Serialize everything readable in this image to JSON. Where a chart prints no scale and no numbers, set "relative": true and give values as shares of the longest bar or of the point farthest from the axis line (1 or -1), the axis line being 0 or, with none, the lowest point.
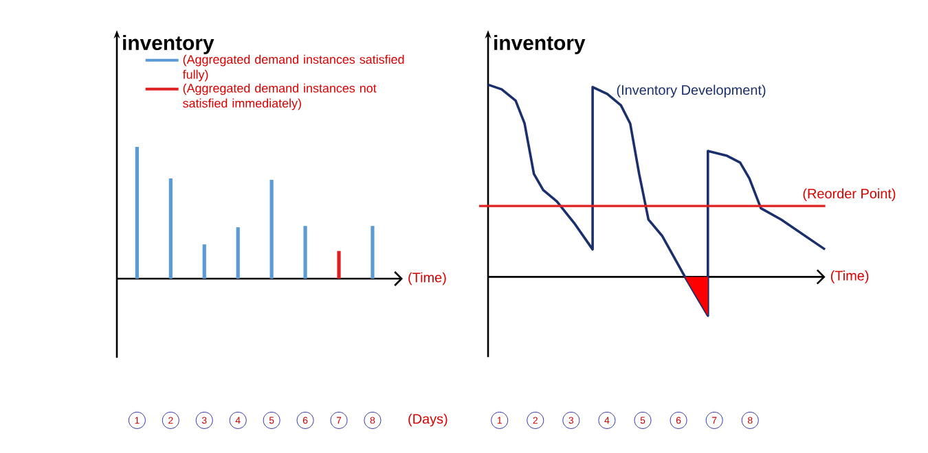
{
  "chart_data": [
    {
      "type": "bar",
      "relative": true,
      "ylabel": "inventory",
      "xlabel": "(Time)",
      "categories": [
        "1",
        "2",
        "3",
        "4",
        "5",
        "6",
        "7",
        "8"
      ],
      "series": [
        {
          "name": "(Aggregated demand instances satisfied fully)",
          "color": "#5b9bd5",
          "values": [
            1,
            0.76,
            0.26,
            0.39,
            0.75,
            0.4,
            null,
            0.4
          ]
        },
        {
          "name": "(Aggregated demand instances not satisfied immediately)",
          "color": "#e02020",
          "values": [
            null,
            null,
            null,
            null,
            null,
            null,
            0.21,
            null
          ]
        }
      ],
      "legend": "top",
      "annotations": [
        "(Days)"
      ]
    },
    {
      "type": "line",
      "relative": true,
      "ylabel": "inventory",
      "xlabel": "(Time)",
      "xlim": [
        0.68,
        10.1
      ],
      "xticks": [
        1,
        2,
        3,
        4,
        5,
        6,
        7,
        8
      ],
      "series": [
        {
          "name": "(Inventory Development)",
          "color": "#1a2f6b",
          "x": [
            0.68,
            1.06,
            1.45,
            1.7,
            1.96,
            2.22,
            2.6,
            3.11,
            3.6,
            3.6,
            4.01,
            4.39,
            4.65,
            4.9,
            5.16,
            5.54,
            6.18,
            6.82,
            6.82,
            7.34,
            7.72,
            7.98,
            8.3,
            8.87,
            10.09
          ],
          "values": [
            1.0,
            0.976,
            0.917,
            0.798,
            0.536,
            0.452,
            0.393,
            0.274,
            0.143,
            0.988,
            0.952,
            0.893,
            0.798,
            0.536,
            0.298,
            0.214,
            0,
            -0.202,
            0.655,
            0.631,
            0.595,
            0.512,
            0.357,
            0.298,
            0.143
          ]
        },
        {
          "type": "area",
          "color": "#ff0000",
          "x": [
            6.18,
            6.82,
            6.82
          ],
          "values": [
            0,
            -0.202,
            0
          ]
        }
      ],
      "ref_lines": [
        {
          "axis": "y",
          "value": 0.369,
          "label": "(Reorder Point)",
          "color": "#e02020"
        }
      ]
    }
  ]
}
